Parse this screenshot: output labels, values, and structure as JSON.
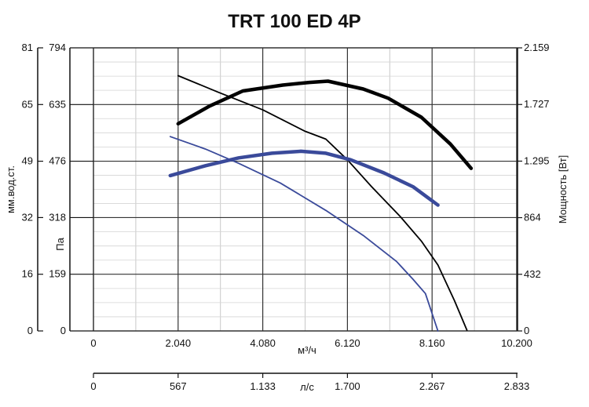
{
  "chart_data": {
    "type": "line",
    "title": "TRT 100 ED 4P",
    "x_axis": {
      "label": "м³/ч",
      "ticks": [
        0,
        2040,
        4080,
        6120,
        8160,
        10200
      ],
      "tick_labels": [
        "0",
        "2.040",
        "4.080",
        "6.120",
        "8.160",
        "10.200"
      ],
      "range": [
        0,
        10200
      ]
    },
    "x_axis_secondary": {
      "label": "л/с",
      "tick_labels": [
        "0",
        "567",
        "1.133",
        "1.700",
        "2.267",
        "2.833"
      ]
    },
    "y_axis_left_outer": {
      "label": "мм.вод.ст.",
      "tick_labels": [
        "0",
        "16",
        "32",
        "49",
        "65",
        "81"
      ]
    },
    "y_axis_left": {
      "label": "Па",
      "ticks": [
        0,
        159,
        318,
        476,
        635,
        794
      ],
      "tick_labels": [
        "0",
        "159",
        "318",
        "476",
        "635",
        "794"
      ],
      "range": [
        0,
        794
      ]
    },
    "y_axis_right": {
      "label": "Мощность [Вт]",
      "ticks": [
        0,
        432,
        864,
        1295,
        1727,
        2159
      ],
      "tick_labels": [
        "0",
        "432",
        "864",
        "1.295",
        "1.727",
        "2.159"
      ],
      "range": [
        0,
        2159
      ]
    },
    "grid": true,
    "series": [
      {
        "axis": "left",
        "color": "#000000",
        "weight": "thin",
        "x": [
          2040,
          3000,
          4080,
          5100,
          5600,
          6120,
          6700,
          7400,
          7900,
          8300,
          8700,
          9000
        ],
        "y": [
          716,
          670,
          620,
          560,
          538,
          480,
          405,
          320,
          252,
          185,
          85,
          2
        ]
      },
      {
        "axis": "right",
        "color": "#000000",
        "weight": "thick",
        "x": [
          2040,
          2800,
          3600,
          4560,
          5200,
          5650,
          6500,
          7100,
          7900,
          8600,
          9100
        ],
        "y": [
          1580,
          1715,
          1830,
          1875,
          1895,
          1905,
          1845,
          1775,
          1630,
          1425,
          1240
        ]
      },
      {
        "axis": "left",
        "color": "#3a4a9a",
        "weight": "thin",
        "x": [
          1850,
          2700,
          3500,
          4500,
          5600,
          6500,
          7300,
          7700,
          8000,
          8300
        ],
        "y": [
          545,
          510,
          470,
          415,
          338,
          268,
          195,
          145,
          105,
          0
        ]
      },
      {
        "axis": "right",
        "color": "#3a4a9a",
        "weight": "thick",
        "x": [
          1850,
          2700,
          3500,
          4300,
          5000,
          5600,
          6200,
          7000,
          7700,
          8300
        ],
        "y": [
          1185,
          1260,
          1320,
          1355,
          1370,
          1355,
          1305,
          1205,
          1100,
          960
        ]
      }
    ]
  }
}
